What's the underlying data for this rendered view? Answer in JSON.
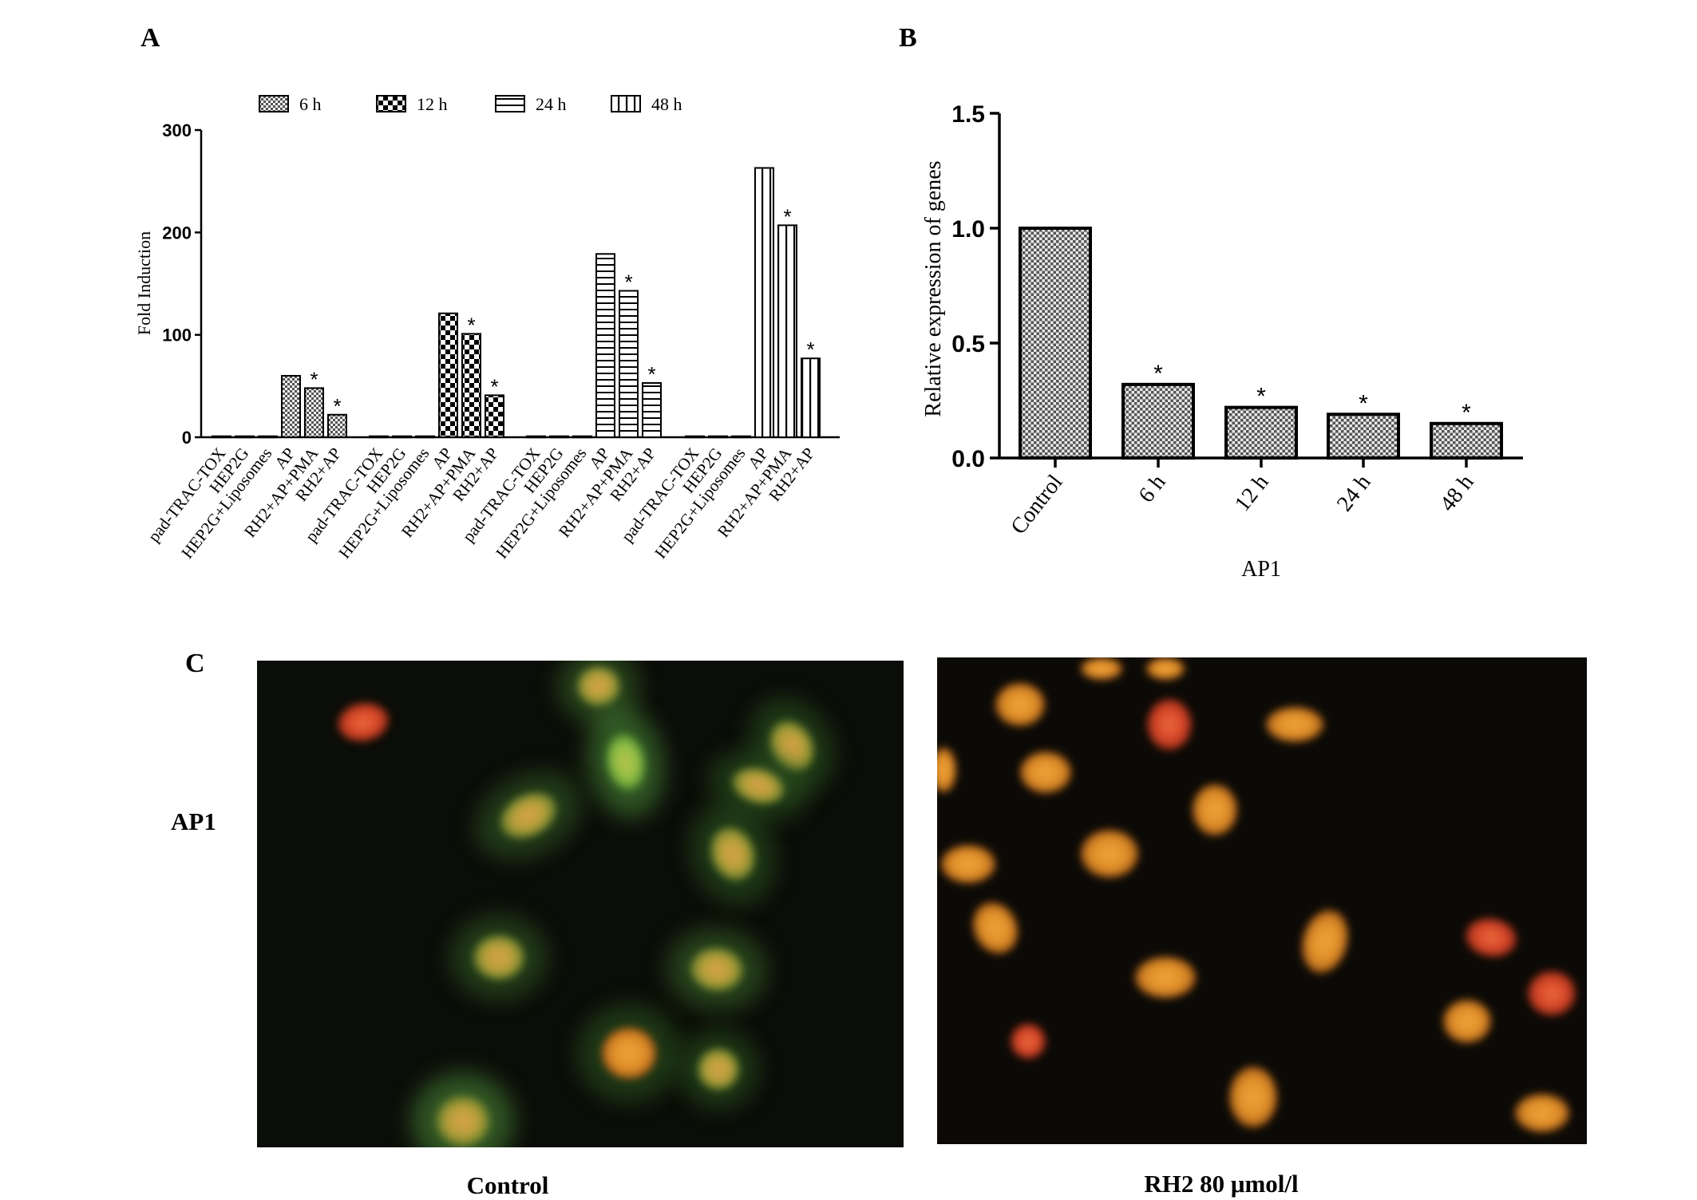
{
  "panels": {
    "A": "A",
    "B": "B",
    "C": "C"
  },
  "chart_data": [
    {
      "panel": "A",
      "type": "bar",
      "ylabel": "Fold Induction",
      "ylim": [
        0,
        300
      ],
      "yticks": [
        0,
        100,
        200,
        300
      ],
      "legend_position": "top",
      "categories": [
        "pad-TRAC-TOX",
        "HEP2G",
        "HEP2G+Liposomes",
        "AP",
        "RH2+AP+PMA",
        "RH2+AP"
      ],
      "series": [
        {
          "name": "6 h",
          "pattern": "checker-fine",
          "values": [
            1,
            1,
            1,
            60,
            48,
            22
          ],
          "significant": [
            false,
            false,
            false,
            false,
            true,
            true
          ]
        },
        {
          "name": "12 h",
          "pattern": "checker-bold",
          "values": [
            1,
            1,
            1,
            121,
            101,
            41
          ],
          "significant": [
            false,
            false,
            false,
            false,
            true,
            true
          ]
        },
        {
          "name": "24 h",
          "pattern": "horizontal",
          "values": [
            1,
            1,
            1,
            179,
            143,
            53
          ],
          "significant": [
            false,
            false,
            false,
            false,
            true,
            true
          ]
        },
        {
          "name": "48 h",
          "pattern": "vertical",
          "values": [
            1,
            1,
            1,
            263,
            207,
            77
          ],
          "significant": [
            false,
            false,
            false,
            false,
            true,
            true
          ]
        }
      ],
      "significance_marker": "*"
    },
    {
      "panel": "B",
      "type": "bar",
      "xlabel": "AP1",
      "ylabel": "Relative expression of genes",
      "ylim": [
        0,
        1.5
      ],
      "yticks": [
        "0.0",
        "0.5",
        "1.0",
        "1.5"
      ],
      "categories": [
        "Control",
        "6 h",
        "12 h",
        "24 h",
        "48 h"
      ],
      "values": [
        1.0,
        0.32,
        0.22,
        0.19,
        0.15
      ],
      "significant": [
        false,
        true,
        true,
        true,
        true
      ],
      "significance_marker": "*"
    }
  ],
  "micrographs": {
    "row_label": "AP1",
    "left_caption": "Control",
    "right_caption": "RH2  80 μmol/l"
  },
  "colors": {
    "ink": "#000000",
    "micrograph_background": "#0b0d08",
    "nucleus_orange": "#e0902a",
    "nucleus_red": "#d8462a",
    "cytoplasm_green": "#5ea84a"
  }
}
